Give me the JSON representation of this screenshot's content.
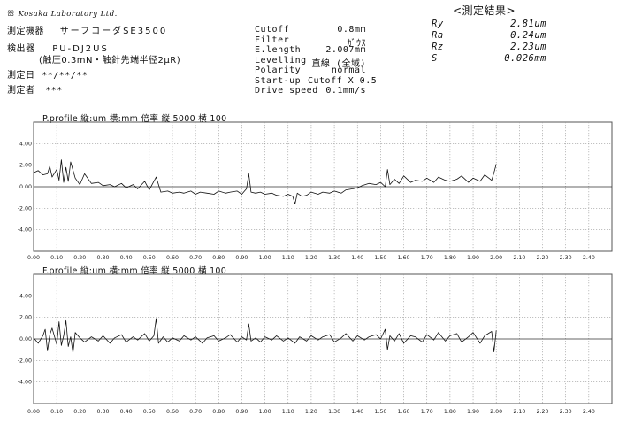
{
  "header": {
    "logo": "Kosaka Laboratory Ltd.",
    "instrument_label": "測定機器",
    "instrument_value": "サーフコーダSE3500",
    "stylus_label": "検出器",
    "stylus_value": "PU-DJ2US",
    "stylus_note": "(触圧0.3mN・触針先端半径2μR)",
    "date_label": "測定日",
    "date_value": "**/**/**",
    "operator_label": "測定者",
    "operator_value": "***"
  },
  "conditions": [
    {
      "label": "Cutoff",
      "value": "0.8mm"
    },
    {
      "label": "Filter",
      "value": "ｶﾞｳｽ"
    },
    {
      "label": "E.length",
      "value": "2.007mm"
    },
    {
      "label": "Levelling",
      "value": "直線 (全域)"
    },
    {
      "label": "Polarity",
      "value": "normal"
    },
    {
      "label": "Start-up",
      "value": "Cutoff X 0.5"
    },
    {
      "label": "Drive speed",
      "value": "0.1mm/s"
    }
  ],
  "results": {
    "title": "<測定結果>",
    "items": [
      {
        "label": "Ry",
        "value": "2.81um"
      },
      {
        "label": "Ra",
        "value": "0.24um"
      },
      {
        "label": "Rz",
        "value": "2.23um"
      },
      {
        "label": "S",
        "value": "0.026mm"
      }
    ]
  },
  "chart_data": [
    {
      "type": "line",
      "title": "P.profile  縦:um 横:mm     倍率  縦 5000     横 100",
      "xlim": [
        0,
        2.5
      ],
      "ylim": [
        -6,
        6
      ],
      "x_ticks": [
        "0.00",
        "0.10",
        "0.20",
        "0.30",
        "0.40",
        "0.50",
        "0.60",
        "0.70",
        "0.80",
        "0.90",
        "1.00",
        "1.10",
        "1.20",
        "1.30",
        "1.40",
        "1.50",
        "1.60",
        "1.70",
        "1.80",
        "1.90",
        "2.00",
        "2.10",
        "2.20",
        "2.30",
        "2.40"
      ],
      "y_ticks": [
        "4.00",
        "2.00",
        "0.00",
        "-2.00",
        "-4.00"
      ],
      "grid": true,
      "series": [
        {
          "x": [
            0.0,
            0.02,
            0.04,
            0.06,
            0.07,
            0.08,
            0.1,
            0.11,
            0.12,
            0.13,
            0.14,
            0.15,
            0.16,
            0.18,
            0.2,
            0.22,
            0.25,
            0.28,
            0.3,
            0.33,
            0.35,
            0.38,
            0.4,
            0.43,
            0.45,
            0.48,
            0.5,
            0.53,
            0.55,
            0.58,
            0.6,
            0.63,
            0.65,
            0.68,
            0.7,
            0.72,
            0.75,
            0.78,
            0.8,
            0.83,
            0.85,
            0.88,
            0.9,
            0.92,
            0.93,
            0.94,
            0.96,
            0.98,
            1.0,
            1.03,
            1.05,
            1.08,
            1.1,
            1.12,
            1.13,
            1.14,
            1.16,
            1.18,
            1.2,
            1.23,
            1.25,
            1.28,
            1.3,
            1.33,
            1.35,
            1.38,
            1.4,
            1.42,
            1.45,
            1.48,
            1.5,
            1.52,
            1.53,
            1.54,
            1.56,
            1.58,
            1.6,
            1.63,
            1.65,
            1.68,
            1.7,
            1.73,
            1.75,
            1.78,
            1.8,
            1.83,
            1.85,
            1.88,
            1.9,
            1.93,
            1.95,
            1.98,
            1.99,
            2.0
          ],
          "y": [
            1.3,
            1.5,
            1.1,
            1.2,
            1.9,
            0.9,
            1.6,
            0.6,
            2.5,
            0.4,
            1.8,
            0.5,
            2.3,
            0.8,
            0.2,
            1.2,
            0.3,
            0.4,
            0.1,
            0.2,
            0.0,
            0.3,
            -0.1,
            0.2,
            -0.2,
            0.5,
            -0.3,
            0.9,
            -0.5,
            -0.4,
            -0.6,
            -0.5,
            -0.6,
            -0.4,
            -0.7,
            -0.5,
            -0.6,
            -0.7,
            -0.4,
            -0.6,
            -0.5,
            -0.4,
            -0.7,
            -0.2,
            1.2,
            -0.5,
            -0.6,
            -0.5,
            -0.7,
            -0.6,
            -0.8,
            -0.9,
            -0.7,
            -0.9,
            -1.6,
            -0.6,
            -0.9,
            -0.8,
            -0.5,
            -0.7,
            -0.5,
            -0.6,
            -0.4,
            -0.6,
            -0.3,
            -0.2,
            -0.1,
            0.1,
            0.3,
            0.2,
            0.4,
            0.0,
            1.6,
            0.2,
            0.7,
            0.3,
            1.0,
            0.4,
            0.6,
            0.5,
            0.8,
            0.4,
            0.9,
            0.6,
            0.5,
            0.7,
            1.0,
            0.4,
            0.8,
            0.5,
            1.1,
            0.6,
            1.3,
            2.1
          ]
        }
      ]
    },
    {
      "type": "line",
      "title": "F.profile  縦:um 横:mm     倍率  縦 5000     横 100",
      "xlim": [
        0,
        2.5
      ],
      "ylim": [
        -6,
        6
      ],
      "x_ticks": [
        "0.00",
        "0.10",
        "0.20",
        "0.30",
        "0.40",
        "0.50",
        "0.60",
        "0.70",
        "0.80",
        "0.90",
        "1.00",
        "1.10",
        "1.20",
        "1.30",
        "1.40",
        "1.50",
        "1.60",
        "1.70",
        "1.80",
        "1.90",
        "2.00",
        "2.10",
        "2.20",
        "2.30",
        "2.40"
      ],
      "y_ticks": [
        "4.00",
        "2.00",
        "0.00",
        "-2.00",
        "-4.00"
      ],
      "grid": true,
      "series": [
        {
          "x": [
            0.0,
            0.02,
            0.04,
            0.05,
            0.06,
            0.07,
            0.08,
            0.1,
            0.11,
            0.12,
            0.13,
            0.14,
            0.15,
            0.16,
            0.17,
            0.18,
            0.2,
            0.22,
            0.25,
            0.28,
            0.3,
            0.33,
            0.35,
            0.38,
            0.4,
            0.43,
            0.45,
            0.48,
            0.5,
            0.52,
            0.53,
            0.54,
            0.56,
            0.58,
            0.6,
            0.63,
            0.65,
            0.68,
            0.7,
            0.73,
            0.75,
            0.78,
            0.8,
            0.83,
            0.85,
            0.88,
            0.9,
            0.92,
            0.93,
            0.94,
            0.96,
            0.98,
            1.0,
            1.03,
            1.05,
            1.08,
            1.1,
            1.13,
            1.15,
            1.18,
            1.2,
            1.23,
            1.25,
            1.28,
            1.3,
            1.33,
            1.35,
            1.38,
            1.4,
            1.43,
            1.45,
            1.48,
            1.5,
            1.52,
            1.53,
            1.54,
            1.56,
            1.58,
            1.6,
            1.63,
            1.65,
            1.68,
            1.7,
            1.73,
            1.75,
            1.78,
            1.8,
            1.83,
            1.85,
            1.88,
            1.9,
            1.93,
            1.95,
            1.98,
            1.99,
            2.0
          ],
          "y": [
            0.1,
            -0.4,
            0.3,
            0.9,
            -1.1,
            0.4,
            1.0,
            -0.5,
            1.6,
            -0.6,
            0.3,
            1.7,
            -0.7,
            0.2,
            -1.3,
            0.6,
            0.1,
            -0.3,
            0.2,
            -0.2,
            0.3,
            -0.4,
            0.1,
            0.4,
            -0.3,
            0.2,
            -0.1,
            0.5,
            -0.2,
            0.3,
            1.9,
            -0.4,
            0.2,
            -0.3,
            0.1,
            -0.2,
            0.3,
            -0.1,
            0.2,
            -0.4,
            0.1,
            0.3,
            -0.2,
            0.1,
            0.4,
            -0.3,
            0.2,
            -0.1,
            1.4,
            -0.2,
            0.1,
            -0.3,
            0.2,
            -0.1,
            0.3,
            -0.2,
            0.1,
            -0.4,
            0.2,
            -0.2,
            0.3,
            -0.1,
            0.2,
            0.4,
            -0.3,
            0.1,
            0.5,
            -0.2,
            0.3,
            -0.1,
            0.2,
            0.4,
            0.0,
            0.9,
            -1.0,
            0.3,
            -0.2,
            0.5,
            -0.4,
            0.3,
            0.2,
            -0.3,
            0.4,
            -0.1,
            0.6,
            -0.2,
            0.3,
            0.5,
            -0.3,
            0.2,
            0.6,
            -0.4,
            0.3,
            0.7,
            -1.2,
            0.8
          ]
        }
      ]
    }
  ]
}
